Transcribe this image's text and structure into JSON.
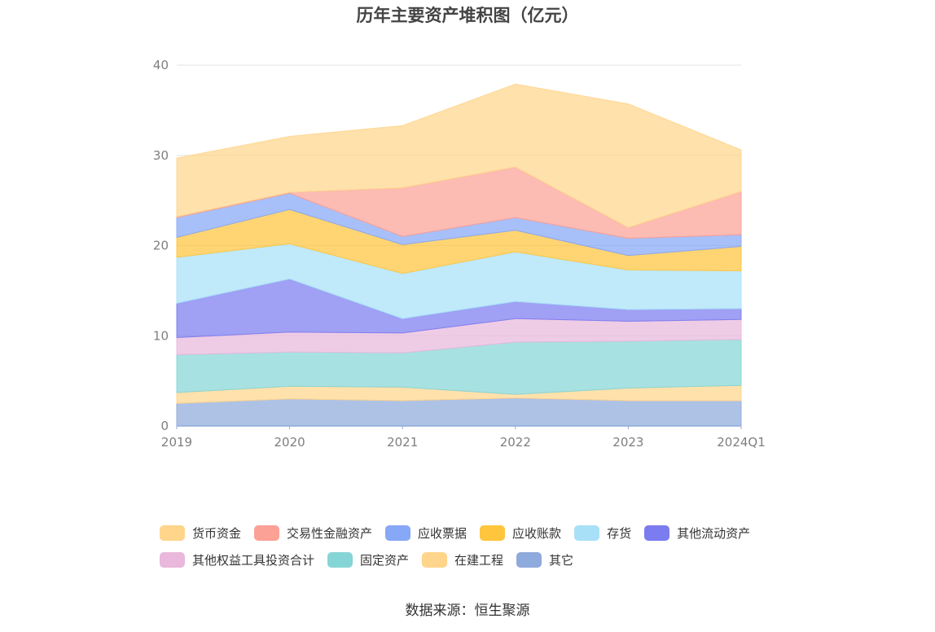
{
  "chart_data": {
    "type": "area",
    "stacked": true,
    "title": "历年主要资产堆积图（亿元）",
    "categories": [
      "2019",
      "2020",
      "2021",
      "2022",
      "2023",
      "2024Q1"
    ],
    "ylim": [
      0,
      40
    ],
    "yticks": [
      0,
      10,
      20,
      30,
      40
    ],
    "grid": true,
    "legend_position": "bottom",
    "series": [
      {
        "name": "其它",
        "color": "#8faadc",
        "values": [
          2.5,
          3.0,
          2.8,
          3.1,
          2.8,
          2.8
        ]
      },
      {
        "name": "在建工程",
        "color": "#ffd58c",
        "values": [
          1.2,
          1.4,
          1.5,
          0.4,
          1.4,
          1.7
        ]
      },
      {
        "name": "固定资产",
        "color": "#86d5d6",
        "values": [
          4.2,
          3.8,
          3.8,
          5.8,
          5.2,
          5.1
        ]
      },
      {
        "name": "其他权益工具投资合计",
        "color": "#e9b8dc",
        "values": [
          1.9,
          2.2,
          2.2,
          2.6,
          2.2,
          2.2
        ]
      },
      {
        "name": "其他流动资产",
        "color": "#7b7cf0",
        "values": [
          3.8,
          5.9,
          1.6,
          1.9,
          1.3,
          1.2
        ]
      },
      {
        "name": "存货",
        "color": "#a8e0f8",
        "values": [
          5.1,
          3.9,
          5.0,
          5.5,
          4.4,
          4.2
        ]
      },
      {
        "name": "应收账款",
        "color": "#ffc53d",
        "values": [
          2.2,
          3.8,
          3.2,
          2.4,
          1.6,
          2.7
        ]
      },
      {
        "name": "应收票据",
        "color": "#87a7f7",
        "values": [
          2.2,
          1.8,
          0.9,
          1.4,
          1.9,
          1.3
        ]
      },
      {
        "name": "交易性金融资产",
        "color": "#fba195",
        "values": [
          0.1,
          0.1,
          5.4,
          5.6,
          1.2,
          4.8
        ]
      },
      {
        "name": "货币资金",
        "color": "#ffd58c",
        "values": [
          6.5,
          6.2,
          6.9,
          9.2,
          13.7,
          4.6
        ]
      }
    ],
    "legend_order": [
      "货币资金",
      "交易性金融资产",
      "应收票据",
      "应收账款",
      "存货",
      "其他流动资产",
      "其他权益工具投资合计",
      "固定资产",
      "在建工程",
      "其它"
    ]
  },
  "source_text": "数据来源：恒生聚源"
}
